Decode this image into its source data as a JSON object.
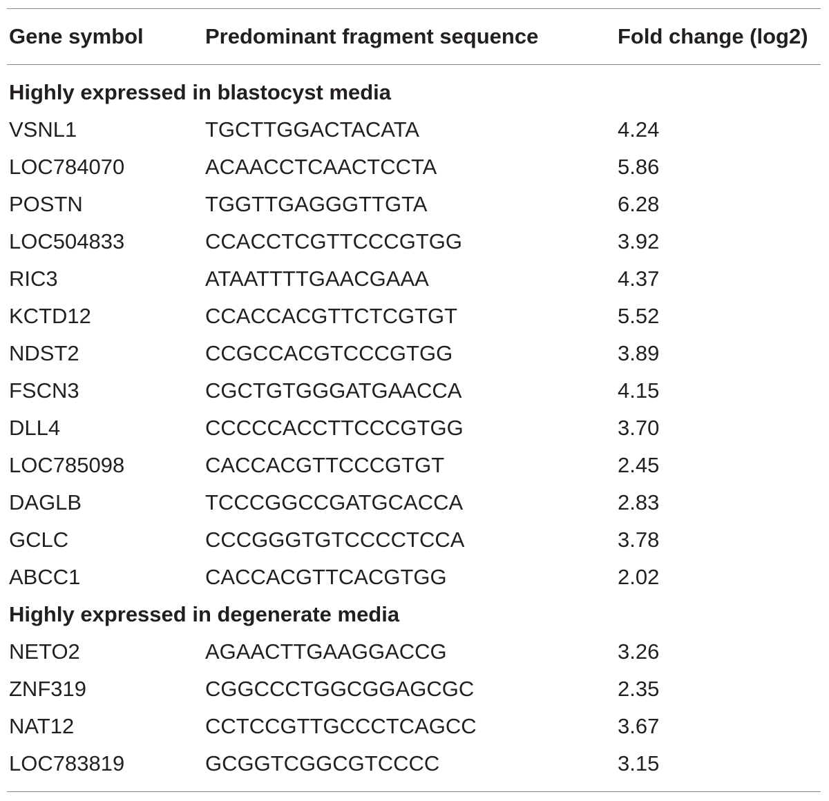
{
  "table": {
    "headers": [
      "Gene symbol",
      "Predominant fragment sequence",
      "Fold change (log2)"
    ],
    "sections": [
      {
        "title": "Highly expressed in blastocyst media",
        "rows": [
          [
            "VSNL1",
            "TGCTTGGACTACATA",
            "4.24"
          ],
          [
            "LOC784070",
            "ACAACCTCAACTCCTA",
            "5.86"
          ],
          [
            "POSTN",
            "TGGTTGAGGGTTGTA",
            "6.28"
          ],
          [
            "LOC504833",
            "CCACCTCGTTCCCGTGG",
            "3.92"
          ],
          [
            "RIC3",
            "ATAATTTTGAACGAAA",
            "4.37"
          ],
          [
            "KCTD12",
            "CCACCACGTTCTCGTGT",
            "5.52"
          ],
          [
            "NDST2",
            "CCGCCACGTCCCGTGG",
            "3.89"
          ],
          [
            "FSCN3",
            "CGCTGTGGGATGAACCA",
            "4.15"
          ],
          [
            "DLL4",
            "CCCCCACCTTCCCGTGG",
            "3.70"
          ],
          [
            "LOC785098",
            "CACCACGTTCCCGTGT",
            "2.45"
          ],
          [
            "DAGLB",
            "TCCCGGCCGATGCACCA",
            "2.83"
          ],
          [
            "GCLC",
            "CCCGGGTGTCCCCTCCA",
            "3.78"
          ],
          [
            "ABCC1",
            "CACCACGTTCACGTGG",
            "2.02"
          ]
        ]
      },
      {
        "title": "Highly expressed in degenerate media",
        "rows": [
          [
            "NETO2",
            "AGAACTTGAAGGACCG",
            "3.26"
          ],
          [
            "ZNF319",
            "CGGCCCTGGCGGAGCGC",
            "2.35"
          ],
          [
            "NAT12",
            "CCTCCGTTGCCCTCAGCC",
            "3.67"
          ],
          [
            "LOC783819",
            "GCGGTCGGCGTCCCC",
            "3.15"
          ]
        ]
      }
    ]
  }
}
